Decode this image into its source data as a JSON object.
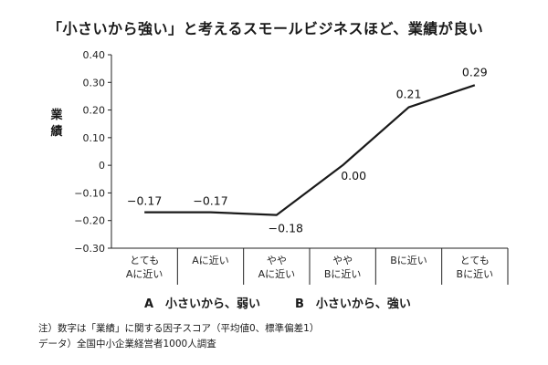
{
  "title": "「小さいから強い」と考えるスモールビジネスほど、業績が良い",
  "ylabel_chars": [
    "業",
    "績"
  ],
  "legend": {
    "a": "A　小さいから、弱い",
    "b": "B　小さいから、強い"
  },
  "notes": [
    "注）数字は「業績」に関する因子スコア（平均値0、標準偏差1）",
    "データ）全国中小企業経営者1000人調査"
  ],
  "chart_data": {
    "type": "line",
    "title": "「小さいから強い」と考えるスモールビジネスほど、業績が良い",
    "ylabel": "業績",
    "xlabel": "",
    "ylim": [
      -0.3,
      0.4
    ],
    "yticks": [
      0.4,
      0.3,
      0.2,
      0.1,
      0,
      -0.1,
      -0.2,
      -0.3
    ],
    "ytick_labels": [
      "0.40",
      "0.30",
      "0.20",
      "0.10",
      "0",
      "−0.10",
      "−0.20",
      "−0.30"
    ],
    "categories": [
      [
        "とても",
        "Aに近い"
      ],
      [
        "Aに近い"
      ],
      [
        "やや",
        "Aに近い"
      ],
      [
        "やや",
        "Bに近い"
      ],
      [
        "Bに近い"
      ],
      [
        "とても",
        "Bに近い"
      ]
    ],
    "values": [
      -0.17,
      -0.17,
      -0.18,
      0.0,
      0.21,
      0.29
    ],
    "data_labels": [
      "−0.17",
      "−0.17",
      "−0.18",
      "0.00",
      "0.21",
      "0.29"
    ],
    "grid": false,
    "line_color": "#1a1a1a"
  }
}
